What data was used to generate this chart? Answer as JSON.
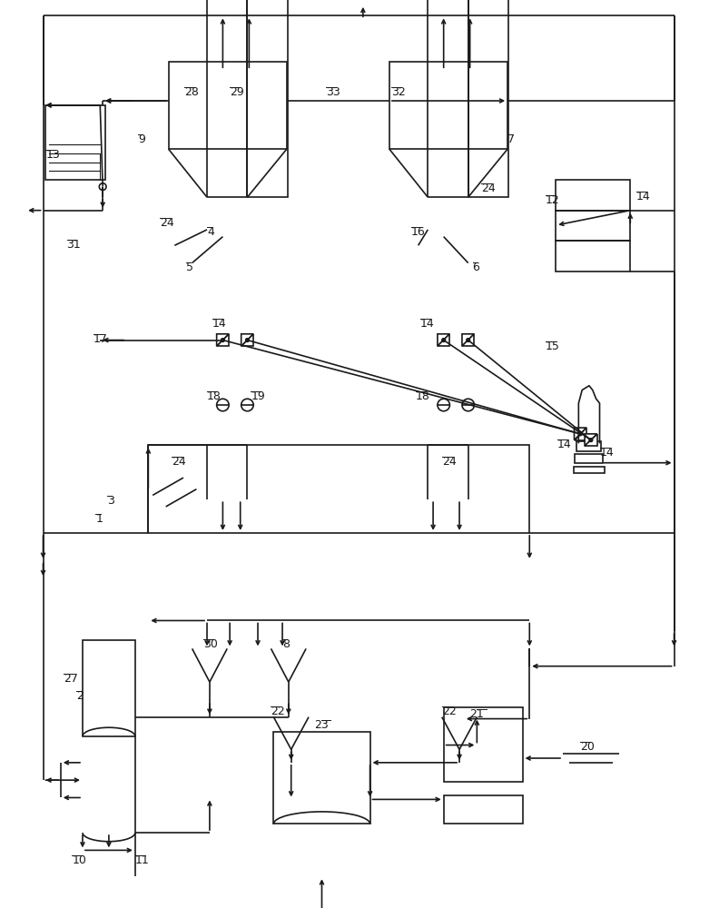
{
  "bg_color": "#ffffff",
  "line_color": "#1a1a1a",
  "lw": 1.2,
  "fig_width": 7.92,
  "fig_height": 10.0
}
